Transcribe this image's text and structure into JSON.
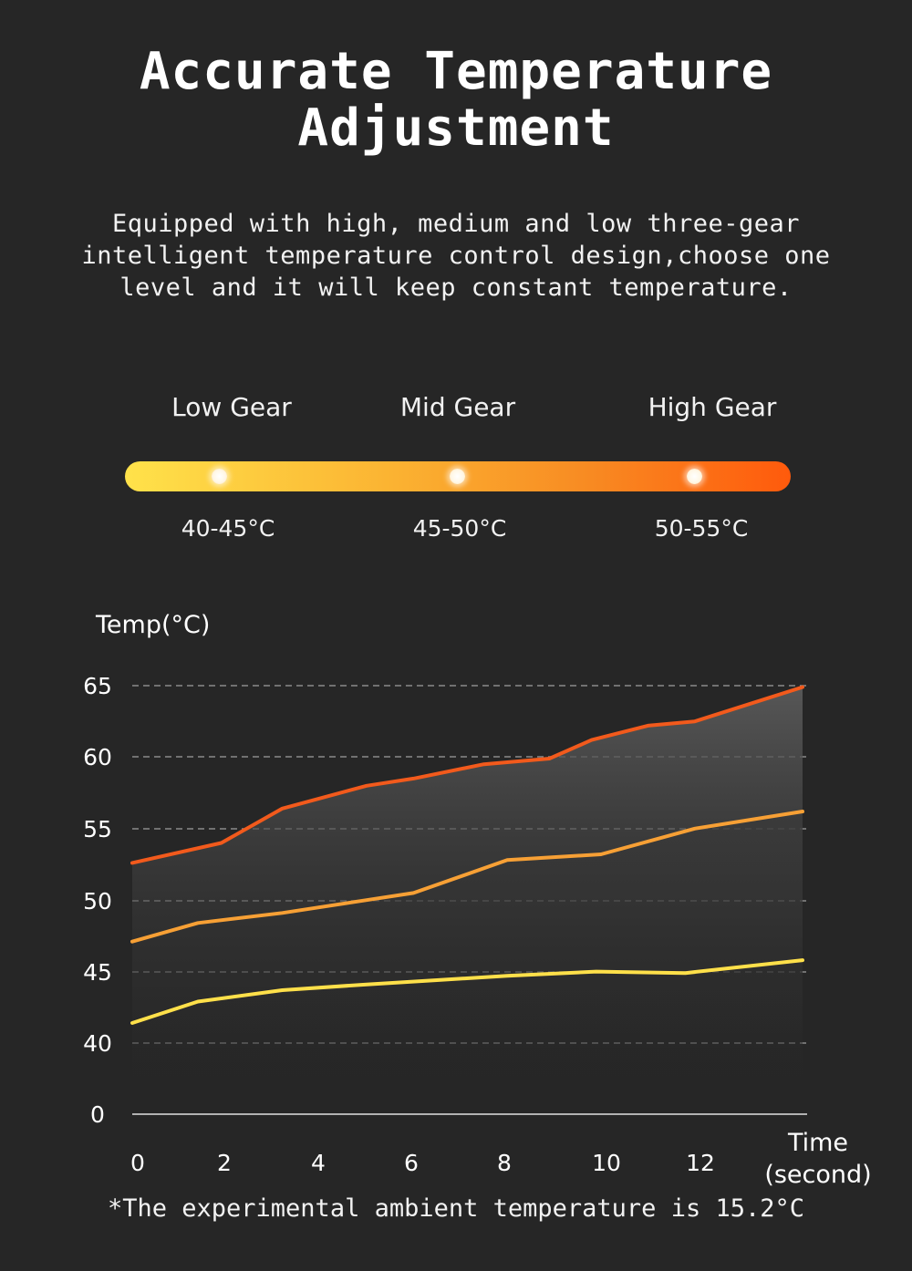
{
  "header": {
    "title_line1": "Accurate Temperature",
    "title_line2": "Adjustment",
    "subtitle_line1": "Equipped with high, medium and low three-gear",
    "subtitle_line2": "intelligent temperature control design,choose one",
    "subtitle_line3": "level and it will keep constant temperature."
  },
  "gears": [
    {
      "label": "Low Gear",
      "range": "40-45°C"
    },
    {
      "label": "Mid Gear",
      "range": "45-50°C"
    },
    {
      "label": "High Gear",
      "range": "50-55°C"
    }
  ],
  "colors": {
    "background": "#262626",
    "low": "#ffe04a",
    "mid": "#f7a035",
    "high": "#f25a1c"
  },
  "chart_data": {
    "type": "line",
    "ylabel": "Temp(°C)",
    "xlabel_line1": "Time",
    "xlabel_line2": "(second)",
    "y_ticks": [
      0,
      40,
      45,
      50,
      55,
      60,
      65
    ],
    "x_ticks": [
      0,
      2,
      4,
      6,
      8,
      10,
      12
    ],
    "xlim": [
      0,
      14.3
    ],
    "grid": true,
    "series": [
      {
        "key": "low",
        "x": [
          0,
          1.4,
          3.2,
          5,
          6.5,
          8,
          9.9,
          11.8,
          14.3
        ],
        "y": [
          41.4,
          42.9,
          43.7,
          44.1,
          44.4,
          44.7,
          45.0,
          44.9,
          45.8
        ]
      },
      {
        "key": "mid",
        "x": [
          0,
          1.4,
          3.2,
          5,
          6,
          8,
          10,
          12,
          14.3
        ],
        "y": [
          47.1,
          48.4,
          49.1,
          50.0,
          50.5,
          52.8,
          53.2,
          55.0,
          56.2
        ]
      },
      {
        "key": "high",
        "x": [
          0,
          1.9,
          3.2,
          5,
          6,
          7.5,
          8.9,
          9.8,
          11,
          12,
          14.3
        ],
        "y": [
          52.6,
          54.0,
          56.4,
          58.0,
          58.5,
          59.5,
          59.9,
          61.2,
          62.2,
          62.5,
          64.9
        ]
      }
    ]
  },
  "footnote": "*The experimental ambient temperature is 15.2°C"
}
